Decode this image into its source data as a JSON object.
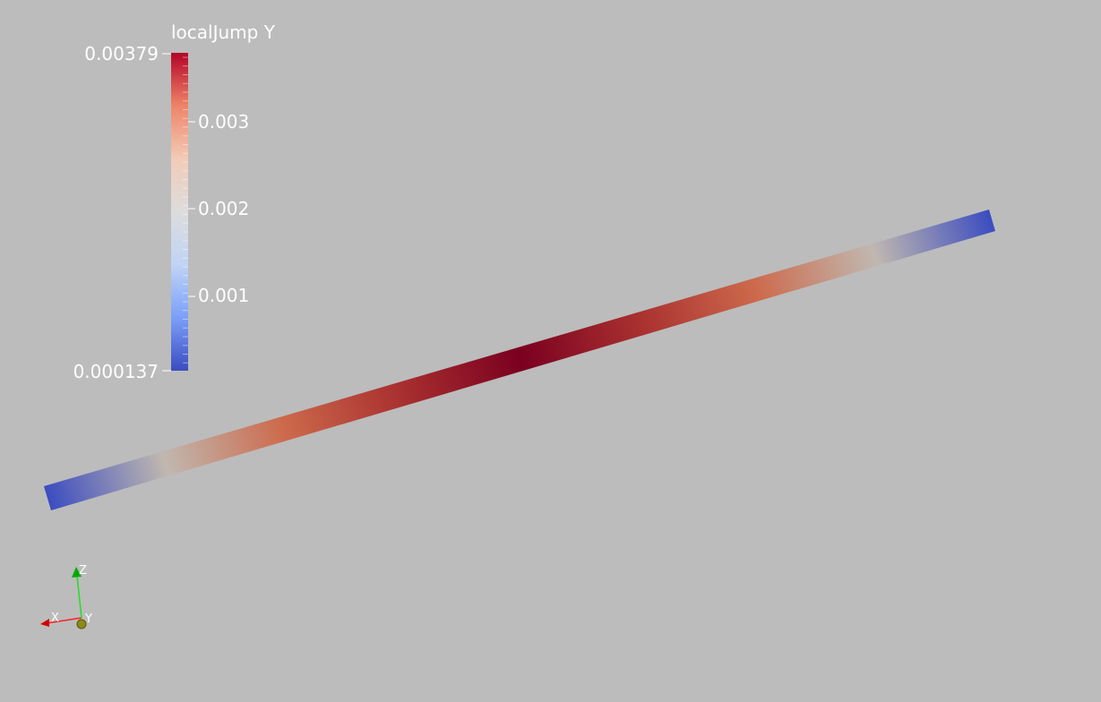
{
  "colorbar": {
    "title": "localJump Y",
    "range_min_label": "0.000137",
    "range_max_label": "0.00379",
    "range_min": 0.000137,
    "range_max": 0.00379,
    "tick_labels": [
      "0.001",
      "0.002",
      "0.003"
    ],
    "ticks": [
      0.001,
      0.002,
      0.003
    ],
    "colormap": [
      "#3b4cc0",
      "#7b9ff9",
      "#c0d4f5",
      "#dddcdc",
      "#f2cbb7",
      "#ee8468",
      "#b40426"
    ]
  },
  "beam": {
    "profile_colors": [
      "#3b4cc0",
      "#c0b8b0",
      "#cd6a4c",
      "#a8302f",
      "#7a0020",
      "#a8302f",
      "#cd6a4c",
      "#c0b8b0",
      "#3b4cc0"
    ]
  },
  "orientation_axes": {
    "x_label": "X",
    "y_label": "Y",
    "z_label": "Z",
    "x_color": "#ff0000",
    "y_color": "#b5b500",
    "z_color": "#00ff00"
  },
  "background_color": "#bcbcbc"
}
